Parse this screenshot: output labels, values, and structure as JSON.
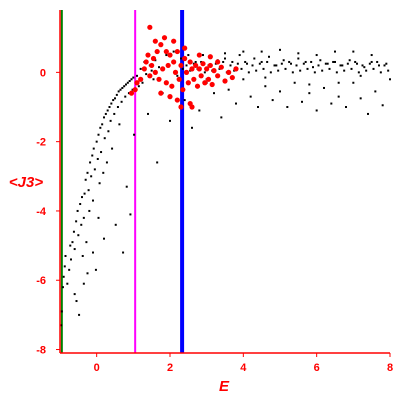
{
  "chart_data": {
    "type": "scatter",
    "xlabel": "E",
    "ylabel": "<J3>",
    "xlim": [
      -1,
      8
    ],
    "ylim": [
      -8.1,
      1.8
    ],
    "x_ticks": [
      {
        "v": 0,
        "label": "0"
      },
      {
        "v": 2,
        "label": "2"
      },
      {
        "v": 4,
        "label": "4"
      },
      {
        "v": 6,
        "label": "6"
      },
      {
        "v": 8,
        "label": "8"
      }
    ],
    "y_ticks": [
      {
        "v": 0,
        "label": "0"
      },
      {
        "v": -2,
        "label": "-2"
      },
      {
        "v": -4,
        "label": "-4"
      },
      {
        "v": -6,
        "label": "-6"
      },
      {
        "v": -8,
        "label": "-8"
      }
    ],
    "grid": false,
    "label_color": "#ff0000",
    "vertical_lines": [
      {
        "x": -0.95,
        "color": "#008000"
      },
      {
        "x": 1.05,
        "color": "#ff00ff"
      },
      {
        "x": 2.33,
        "color": "#0000ff"
      }
    ],
    "series": [
      {
        "color": "#000000",
        "points": [
          [
            -0.97,
            -7.3
          ],
          [
            -0.95,
            -6.9
          ],
          [
            -0.92,
            -6.2
          ],
          [
            -0.9,
            -5.9
          ],
          [
            -0.87,
            -5.6
          ],
          [
            -0.85,
            -5.3
          ],
          [
            -0.8,
            -6.1
          ],
          [
            -0.75,
            -5.7
          ],
          [
            -0.72,
            -5.0
          ],
          [
            -0.7,
            -5.4
          ],
          [
            -0.66,
            -4.9
          ],
          [
            -0.62,
            -4.6
          ],
          [
            -0.6,
            -5.1
          ],
          [
            -0.56,
            -4.3
          ],
          [
            -0.55,
            -6.6
          ],
          [
            -0.52,
            -4.0
          ],
          [
            -0.5,
            -4.7
          ],
          [
            -0.48,
            -7.0
          ],
          [
            -0.45,
            -3.8
          ],
          [
            -0.42,
            -4.4
          ],
          [
            -0.4,
            -3.6
          ],
          [
            -0.38,
            -5.3
          ],
          [
            -0.35,
            -4.2
          ],
          [
            -0.33,
            -3.5
          ],
          [
            -0.3,
            -3.1
          ],
          [
            -0.28,
            -4.9
          ],
          [
            -0.25,
            -2.9
          ],
          [
            -0.22,
            -3.4
          ],
          [
            -0.2,
            -4.0
          ],
          [
            -0.18,
            -2.6
          ],
          [
            -0.15,
            -3.0
          ],
          [
            -0.12,
            -2.4
          ],
          [
            -0.1,
            -3.7
          ],
          [
            -0.08,
            -2.2
          ],
          [
            -0.05,
            -2.8
          ],
          [
            -0.02,
            -5.7
          ],
          [
            0.0,
            -2.0
          ],
          [
            0.03,
            -2.5
          ],
          [
            0.05,
            -1.8
          ],
          [
            0.08,
            -3.2
          ],
          [
            0.1,
            -1.6
          ],
          [
            0.12,
            -2.3
          ],
          [
            0.15,
            -1.5
          ],
          [
            0.18,
            -2.9
          ],
          [
            0.2,
            -1.3
          ],
          [
            0.22,
            -1.9
          ],
          [
            0.25,
            -1.2
          ],
          [
            0.28,
            -2.6
          ],
          [
            0.3,
            -1.1
          ],
          [
            0.32,
            -1.7
          ],
          [
            0.35,
            -1.0
          ],
          [
            0.38,
            -1.4
          ],
          [
            0.4,
            -0.9
          ],
          [
            0.42,
            -2.2
          ],
          [
            0.45,
            -0.8
          ],
          [
            0.48,
            -1.2
          ],
          [
            0.5,
            -0.75
          ],
          [
            0.52,
            -4.4
          ],
          [
            0.55,
            -0.65
          ],
          [
            0.58,
            -1.0
          ],
          [
            0.6,
            -0.55
          ],
          [
            0.62,
            -1.5
          ],
          [
            0.65,
            -0.5
          ],
          [
            0.68,
            -0.85
          ],
          [
            0.7,
            -0.45
          ],
          [
            0.72,
            -5.2
          ],
          [
            0.75,
            -0.4
          ],
          [
            0.78,
            -0.7
          ],
          [
            0.8,
            -0.35
          ],
          [
            0.82,
            -3.3
          ],
          [
            0.85,
            -0.3
          ],
          [
            0.88,
            -0.6
          ],
          [
            0.9,
            -0.25
          ],
          [
            0.92,
            -4.1
          ],
          [
            0.95,
            -0.2
          ],
          [
            0.98,
            -0.5
          ],
          [
            1.0,
            -0.15
          ],
          [
            1.02,
            -1.8
          ],
          [
            -0.25,
            -5.8
          ],
          [
            -0.1,
            -5.2
          ],
          [
            0.2,
            -4.8
          ],
          [
            -0.35,
            -6.1
          ],
          [
            -0.6,
            -6.4
          ],
          [
            0.05,
            -4.2
          ],
          [
            1.1,
            -0.1
          ],
          [
            1.15,
            -0.4
          ],
          [
            1.2,
            0.1
          ],
          [
            1.25,
            -0.3
          ],
          [
            1.3,
            0.3
          ],
          [
            1.35,
            -0.05
          ],
          [
            1.4,
            -1.2
          ],
          [
            1.45,
            0.2
          ],
          [
            1.5,
            0.05
          ],
          [
            1.55,
            -0.2
          ],
          [
            1.6,
            0.35
          ],
          [
            1.65,
            -2.6
          ],
          [
            1.7,
            0.15
          ],
          [
            1.8,
            -0.6
          ],
          [
            1.9,
            0.5
          ],
          [
            2.0,
            -1.4
          ],
          [
            2.1,
            0.6
          ],
          [
            2.2,
            -0.1
          ],
          [
            2.3,
            0.4
          ],
          [
            2.4,
            -0.8
          ],
          [
            2.5,
            0.5
          ],
          [
            2.6,
            -1.6
          ],
          [
            2.7,
            0.3
          ],
          [
            2.8,
            -1.1
          ],
          [
            2.9,
            0.5
          ],
          [
            3.0,
            -0.3
          ],
          [
            3.1,
            0.45
          ],
          [
            3.2,
            -0.6
          ],
          [
            3.3,
            0.35
          ],
          [
            3.4,
            -1.3
          ],
          [
            3.5,
            0.4
          ],
          [
            3.6,
            -0.5
          ],
          [
            3.7,
            0.3
          ],
          [
            3.8,
            -0.9
          ],
          [
            3.9,
            0.5
          ],
          [
            4.0,
            -0.2
          ],
          [
            4.1,
            0.25
          ],
          [
            4.2,
            -0.7
          ],
          [
            4.3,
            0.4
          ],
          [
            4.4,
            -1.0
          ],
          [
            4.5,
            0.3
          ],
          [
            4.6,
            -0.4
          ],
          [
            4.7,
            0.45
          ],
          [
            4.8,
            -0.8
          ],
          [
            4.9,
            0.2
          ],
          [
            5.0,
            -0.55
          ],
          [
            5.1,
            0.35
          ],
          [
            5.2,
            -1.0
          ],
          [
            5.3,
            0.25
          ],
          [
            5.4,
            -0.3
          ],
          [
            5.5,
            0.4
          ],
          [
            5.6,
            -0.85
          ],
          [
            5.7,
            0.3
          ],
          [
            5.8,
            -0.6
          ],
          [
            5.9,
            0.15
          ],
          [
            6.0,
            -1.1
          ],
          [
            6.1,
            0.35
          ],
          [
            6.2,
            -0.45
          ],
          [
            6.3,
            0.25
          ],
          [
            6.4,
            -0.9
          ],
          [
            6.5,
            0.3
          ],
          [
            6.6,
            -0.7
          ],
          [
            6.7,
            0.2
          ],
          [
            6.8,
            -1.0
          ],
          [
            6.9,
            0.35
          ],
          [
            7.0,
            -0.3
          ],
          [
            7.1,
            0.25
          ],
          [
            7.2,
            -0.75
          ],
          [
            7.3,
            0.15
          ],
          [
            7.4,
            -1.2
          ],
          [
            7.5,
            0.3
          ],
          [
            7.6,
            -0.55
          ],
          [
            7.7,
            0.2
          ],
          [
            7.8,
            -0.95
          ],
          [
            7.9,
            0.25
          ],
          [
            8.0,
            -0.2
          ],
          [
            2.35,
            0.1
          ],
          [
            2.45,
            0.2
          ],
          [
            2.55,
            0.05
          ],
          [
            2.65,
            0.25
          ],
          [
            2.75,
            0.1
          ],
          [
            2.85,
            0.3
          ],
          [
            2.95,
            0.0
          ],
          [
            3.05,
            0.2
          ],
          [
            3.15,
            0.05
          ],
          [
            3.25,
            0.25
          ],
          [
            3.35,
            0.1
          ],
          [
            3.45,
            0.3
          ],
          [
            3.55,
            0.0
          ],
          [
            3.65,
            0.2
          ],
          [
            3.75,
            0.05
          ],
          [
            3.85,
            0.25
          ],
          [
            3.95,
            0.1
          ],
          [
            4.05,
            0.3
          ],
          [
            4.15,
            0.0
          ],
          [
            4.25,
            0.2
          ],
          [
            4.35,
            0.05
          ],
          [
            4.45,
            0.25
          ],
          [
            4.55,
            0.1
          ],
          [
            4.65,
            0.3
          ],
          [
            4.75,
            0.0
          ],
          [
            4.85,
            0.2
          ],
          [
            4.95,
            0.05
          ],
          [
            5.05,
            0.25
          ],
          [
            5.15,
            0.1
          ],
          [
            5.25,
            0.3
          ],
          [
            5.35,
            0.0
          ],
          [
            5.45,
            0.2
          ],
          [
            5.55,
            0.05
          ],
          [
            5.65,
            0.25
          ],
          [
            5.75,
            0.1
          ],
          [
            5.85,
            0.3
          ],
          [
            5.95,
            0.0
          ],
          [
            6.05,
            0.2
          ],
          [
            6.15,
            0.05
          ],
          [
            6.25,
            0.25
          ],
          [
            6.35,
            0.1
          ],
          [
            6.45,
            0.3
          ],
          [
            6.55,
            0.0
          ],
          [
            6.65,
            0.2
          ],
          [
            6.75,
            0.05
          ],
          [
            6.85,
            0.25
          ],
          [
            6.95,
            0.1
          ],
          [
            7.05,
            0.3
          ],
          [
            7.15,
            0.0
          ],
          [
            7.25,
            0.2
          ],
          [
            7.35,
            0.05
          ],
          [
            7.45,
            0.25
          ],
          [
            7.55,
            0.1
          ],
          [
            7.65,
            0.3
          ],
          [
            7.75,
            0.0
          ],
          [
            7.85,
            0.2
          ],
          [
            7.95,
            0.05
          ],
          [
            3.5,
            0.55
          ],
          [
            4.5,
            0.6
          ],
          [
            5.5,
            0.55
          ],
          [
            6.5,
            0.6
          ],
          [
            7.5,
            0.5
          ],
          [
            4.0,
            0.6
          ],
          [
            5.0,
            0.65
          ],
          [
            6.0,
            0.5
          ],
          [
            7.0,
            0.6
          ],
          [
            3.0,
            -0.2
          ],
          [
            5.8,
            -0.35
          ],
          [
            6.6,
            -0.3
          ],
          [
            7.2,
            -0.1
          ],
          [
            4.6,
            -0.15
          ]
        ]
      },
      {
        "color": "#ff0000",
        "points": [
          [
            0.95,
            -0.6
          ],
          [
            1.05,
            -0.5
          ],
          [
            1.1,
            -0.3
          ],
          [
            1.2,
            -0.2
          ],
          [
            1.3,
            0.1
          ],
          [
            1.35,
            0.3
          ],
          [
            1.4,
            0.5
          ],
          [
            1.45,
            -0.1
          ],
          [
            1.5,
            0.2
          ],
          [
            1.55,
            0.4
          ],
          [
            1.6,
            0.0
          ],
          [
            1.65,
            0.6
          ],
          [
            1.7,
            -0.2
          ],
          [
            1.75,
            0.8
          ],
          [
            1.8,
            0.1
          ],
          [
            1.85,
            1.0
          ],
          [
            1.9,
            -0.3
          ],
          [
            1.95,
            0.2
          ],
          [
            2.0,
            0.5
          ],
          [
            2.05,
            -0.4
          ],
          [
            2.1,
            0.3
          ],
          [
            2.15,
            0.0
          ],
          [
            2.2,
            0.6
          ],
          [
            2.25,
            -0.2
          ],
          [
            2.3,
            0.2
          ],
          [
            2.35,
            -0.5
          ],
          [
            2.4,
            0.4
          ],
          [
            2.45,
            0.0
          ],
          [
            2.5,
            -0.3
          ],
          [
            2.55,
            0.3
          ],
          [
            2.6,
            0.1
          ],
          [
            2.65,
            -0.2
          ],
          [
            2.7,
            0.2
          ],
          [
            2.75,
            -0.4
          ],
          [
            2.8,
            0.1
          ],
          [
            2.85,
            -0.1
          ],
          [
            2.9,
            0.25
          ],
          [
            2.95,
            -0.3
          ],
          [
            3.0,
            0.1
          ],
          [
            3.05,
            -0.2
          ],
          [
            3.1,
            0.2
          ],
          [
            3.15,
            -0.35
          ],
          [
            3.2,
            0.05
          ],
          [
            3.3,
            -0.1
          ],
          [
            3.4,
            0.15
          ],
          [
            3.5,
            -0.25
          ],
          [
            3.6,
            0.0
          ],
          [
            3.7,
            -0.15
          ],
          [
            3.8,
            0.1
          ],
          [
            1.45,
            1.3
          ],
          [
            1.6,
            0.9
          ],
          [
            1.9,
            0.6
          ],
          [
            2.1,
            0.9
          ],
          [
            2.4,
            0.7
          ],
          [
            2.6,
            -1.0
          ],
          [
            2.55,
            -0.9
          ],
          [
            1.75,
            -0.6
          ],
          [
            2.0,
            -0.7
          ],
          [
            2.2,
            -0.8
          ],
          [
            2.8,
            0.5
          ],
          [
            3.1,
            0.45
          ],
          [
            3.3,
            0.3
          ],
          [
            2.3,
            -1.0
          ]
        ]
      }
    ]
  }
}
